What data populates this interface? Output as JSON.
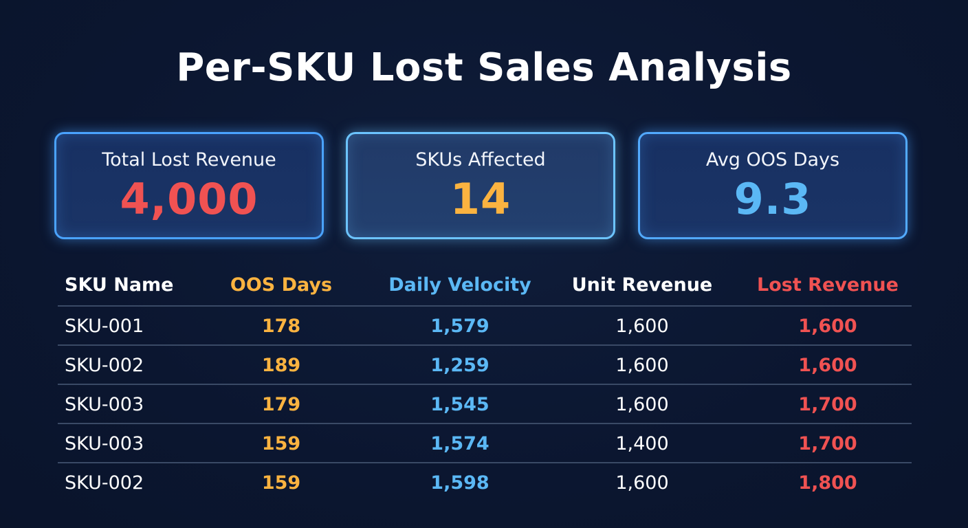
{
  "title": "Per-SKU Lost Sales Analysis",
  "colors": {
    "background": "#0c1730",
    "red": "#f05252",
    "orange": "#fbb340",
    "blue": "#5bb8f5",
    "white": "#ffffff",
    "card_border": "#4aa3ff"
  },
  "kpis": [
    {
      "label": "Total Lost Revenue",
      "value": "4,000",
      "color": "#f05252"
    },
    {
      "label": "SKUs Affected",
      "value": "14",
      "color": "#fbb340"
    },
    {
      "label": "Avg OOS Days",
      "value": "9.3",
      "color": "#5bb8f5"
    }
  ],
  "table": {
    "headers": [
      {
        "label": "SKU Name",
        "color": "#ffffff"
      },
      {
        "label": "OOS Days",
        "color": "#fbb340"
      },
      {
        "label": "Daily Velocity",
        "color": "#5bb8f5"
      },
      {
        "label": "Unit Revenue",
        "color": "#ffffff"
      },
      {
        "label": "Lost Revenue",
        "color": "#f05252"
      }
    ],
    "rows": [
      [
        "SKU-001",
        "178",
        "1,579",
        "1,600",
        "1,600"
      ],
      [
        "SKU-002",
        "189",
        "1,259",
        "1,600",
        "1,600"
      ],
      [
        "SKU-003",
        "179",
        "1,545",
        "1,600",
        "1,700"
      ],
      [
        "SKU-003",
        "159",
        "1,574",
        "1,400",
        "1,700"
      ],
      [
        "SKU-002",
        "159",
        "1,598",
        "1,600",
        "1,800"
      ]
    ]
  },
  "chart_data": {
    "type": "table",
    "title": "Per-SKU Lost Sales Analysis",
    "kpis": [
      {
        "label": "Total Lost Revenue",
        "value": 4000
      },
      {
        "label": "SKUs Affected",
        "value": 14
      },
      {
        "label": "Avg OOS Days",
        "value": 9.3
      }
    ],
    "columns": [
      "SKU Name",
      "OOS Days",
      "Daily Velocity",
      "Unit Revenue",
      "Lost Revenue"
    ],
    "rows": [
      [
        "SKU-001",
        178,
        1579,
        1600,
        1600
      ],
      [
        "SKU-002",
        189,
        1259,
        1600,
        1600
      ],
      [
        "SKU-003",
        179,
        1545,
        1600,
        1700
      ],
      [
        "SKU-003",
        159,
        1574,
        1400,
        1700
      ],
      [
        "SKU-002",
        159,
        1598,
        1600,
        1800
      ]
    ]
  }
}
